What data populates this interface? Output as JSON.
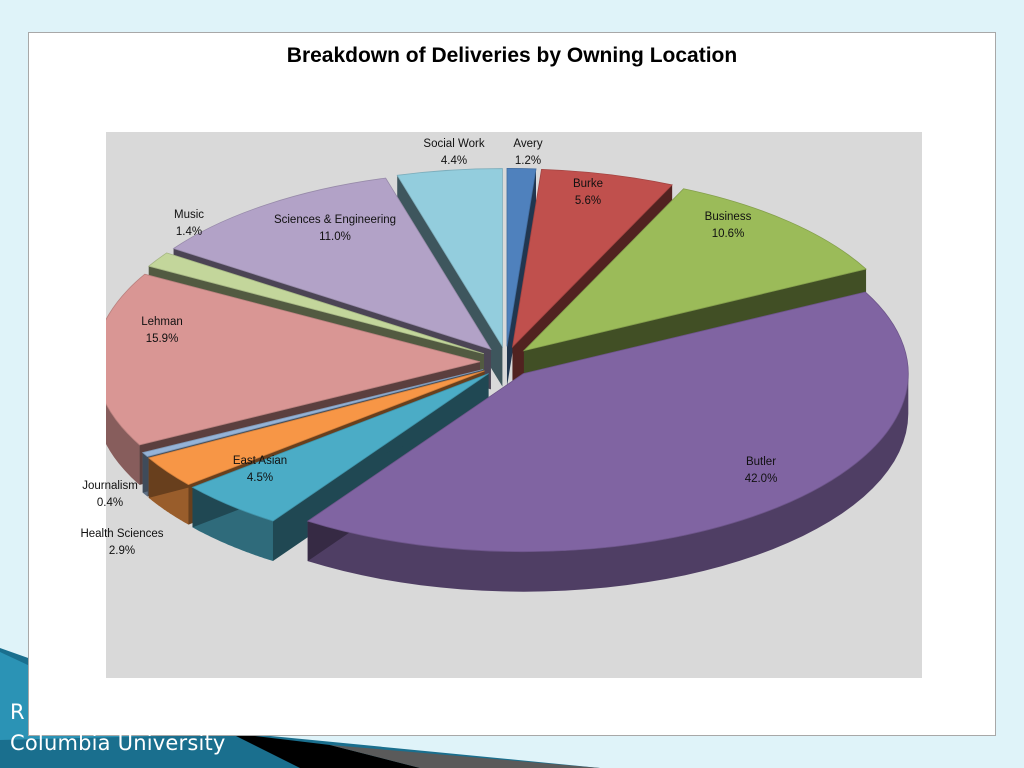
{
  "footer": {
    "partial_line": "R",
    "org_name": "Columbia University"
  },
  "chart_data": {
    "type": "pie",
    "title": "Breakdown of Deliveries by Owning Location",
    "unit": "%",
    "slices": [
      {
        "name": "Avery",
        "value": 1.2,
        "label": "1.2%",
        "color": "#4f81bd"
      },
      {
        "name": "Burke",
        "value": 5.6,
        "label": "5.6%",
        "color": "#c0504d"
      },
      {
        "name": "Business",
        "value": 10.6,
        "label": "10.6%",
        "color": "#9bbb59"
      },
      {
        "name": "Butler",
        "value": 42.0,
        "label": "42.0%",
        "color": "#8064a2"
      },
      {
        "name": "East Asian",
        "value": 4.5,
        "label": "4.5%",
        "color": "#4bacc6"
      },
      {
        "name": "Health Sciences",
        "value": 2.9,
        "label": "2.9%",
        "color": "#f79646"
      },
      {
        "name": "Journalism",
        "value": 0.4,
        "label": "0.4%",
        "color": "#95b3d7"
      },
      {
        "name": "Lehman",
        "value": 15.9,
        "label": "15.9%",
        "color": "#d99694"
      },
      {
        "name": "Music",
        "value": 1.4,
        "label": "1.4%",
        "color": "#c3d69b"
      },
      {
        "name": "Sciences & Engineering",
        "value": 11.0,
        "label": "11.0%",
        "color": "#b2a2c7"
      },
      {
        "name": "Social Work",
        "value": 4.4,
        "label": "4.4%",
        "color": "#93cddd"
      }
    ],
    "legend": "none",
    "data_labels": "outside slices, name above percentage"
  }
}
